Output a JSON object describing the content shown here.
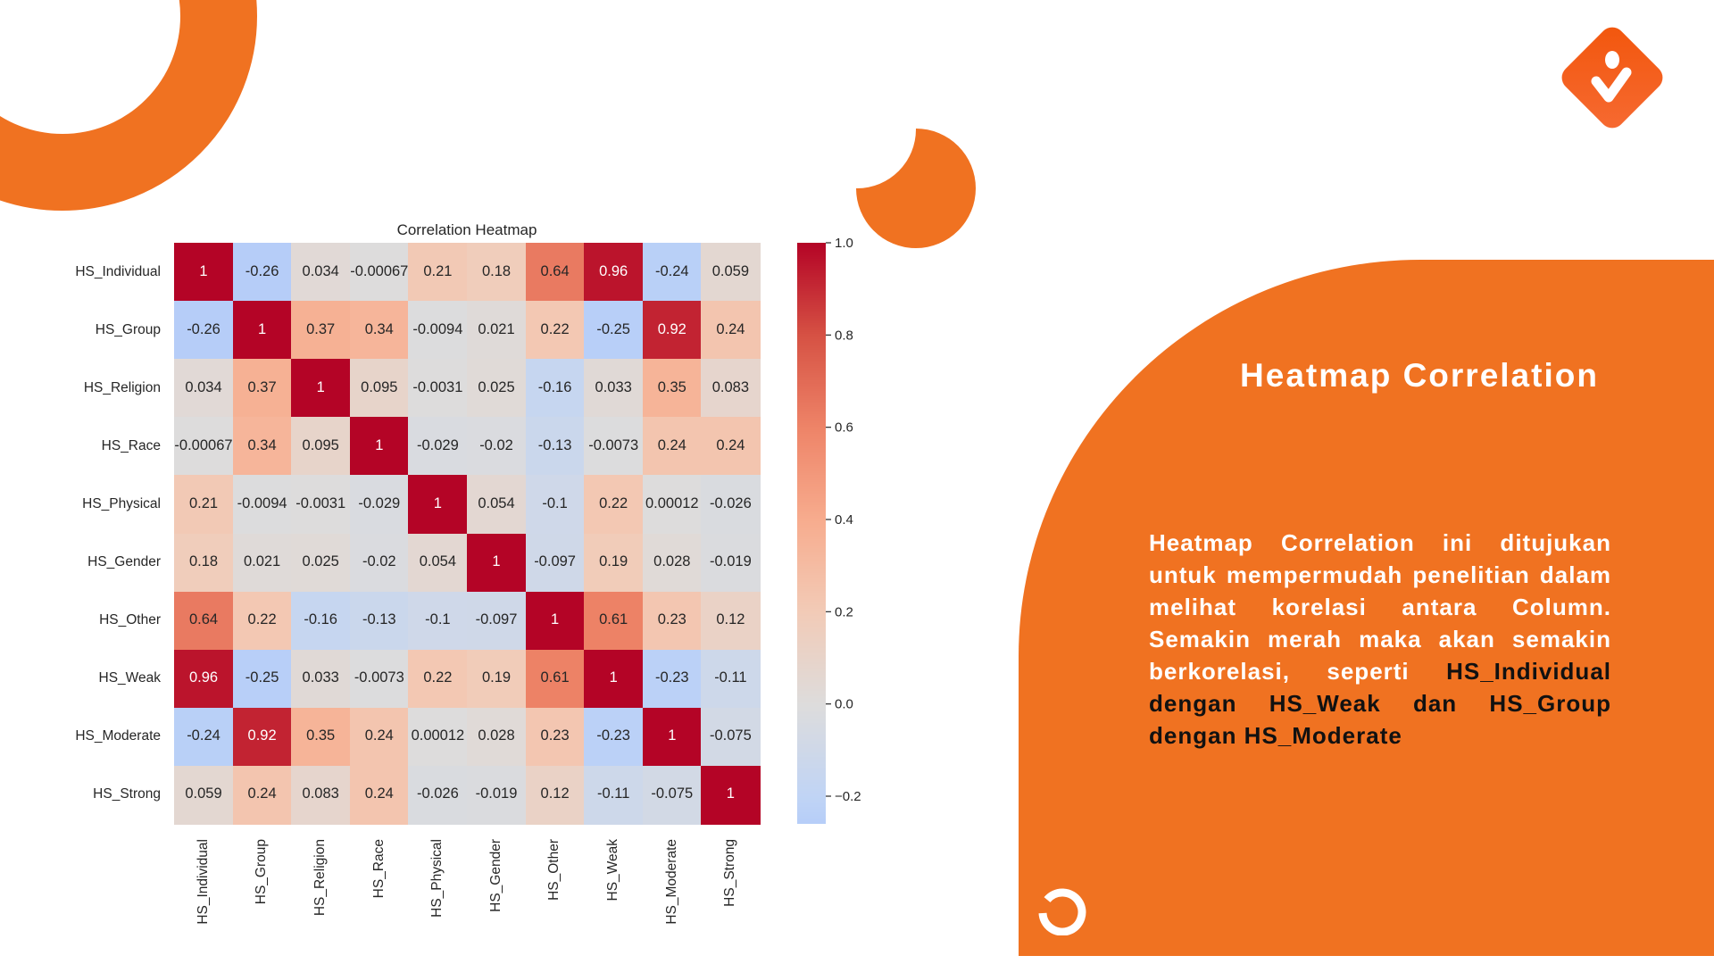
{
  "slide": {
    "heading": "Heatmap Correlation",
    "paragraph_white": "Heatmap Correlation ini ditujukan untuk mempermudah penelitian dalam melihat korelasi antara Column. Semakin merah maka akan semakin berkorelasi, seperti ",
    "paragraph_dark": "HS_Individual dengan HS_Weak dan HS_Group dengan HS_Moderate",
    "accent_color": "#f07221",
    "logo_icon": "person-check-diamond-icon",
    "decor_icon": "circular-arrow-icon"
  },
  "chart_data": {
    "type": "heatmap",
    "title": "Correlation Heatmap",
    "colormap": "coolwarm",
    "center": 0,
    "vmin": -0.26,
    "vmax": 1.0,
    "labels": [
      "HS_Individual",
      "HS_Group",
      "HS_Religion",
      "HS_Race",
      "HS_Physical",
      "HS_Gender",
      "HS_Other",
      "HS_Weak",
      "HS_Moderate",
      "HS_Strong"
    ],
    "values": [
      [
        "1",
        "-0.26",
        "0.034",
        "-0.00067",
        "0.21",
        "0.18",
        "0.64",
        "0.96",
        "-0.24",
        "0.059"
      ],
      [
        "-0.26",
        "1",
        "0.37",
        "0.34",
        "-0.0094",
        "0.021",
        "0.22",
        "-0.25",
        "0.92",
        "0.24"
      ],
      [
        "0.034",
        "0.37",
        "1",
        "0.095",
        "-0.0031",
        "0.025",
        "-0.16",
        "0.033",
        "0.35",
        "0.083"
      ],
      [
        "-0.00067",
        "0.34",
        "0.095",
        "1",
        "-0.029",
        "-0.02",
        "-0.13",
        "-0.0073",
        "0.24",
        "0.24"
      ],
      [
        "0.21",
        "-0.0094",
        "-0.0031",
        "-0.029",
        "1",
        "0.054",
        "-0.1",
        "0.22",
        "0.00012",
        "-0.026"
      ],
      [
        "0.18",
        "0.021",
        "0.025",
        "-0.02",
        "0.054",
        "1",
        "-0.097",
        "0.19",
        "0.028",
        "-0.019"
      ],
      [
        "0.64",
        "0.22",
        "-0.16",
        "-0.13",
        "-0.1",
        "-0.097",
        "1",
        "0.61",
        "0.23",
        "0.12"
      ],
      [
        "0.96",
        "-0.25",
        "0.033",
        "-0.0073",
        "0.22",
        "0.19",
        "0.61",
        "1",
        "-0.23",
        "-0.11"
      ],
      [
        "-0.24",
        "0.92",
        "0.35",
        "0.24",
        "0.00012",
        "0.028",
        "0.23",
        "-0.23",
        "1",
        "-0.075"
      ],
      [
        "0.059",
        "0.24",
        "0.083",
        "0.24",
        "-0.026",
        "-0.019",
        "0.12",
        "-0.11",
        "-0.075",
        "1"
      ]
    ],
    "colorbar_ticks": [
      "1.0",
      "0.8",
      "0.6",
      "0.4",
      "0.2",
      "0.0",
      "−0.2"
    ]
  }
}
